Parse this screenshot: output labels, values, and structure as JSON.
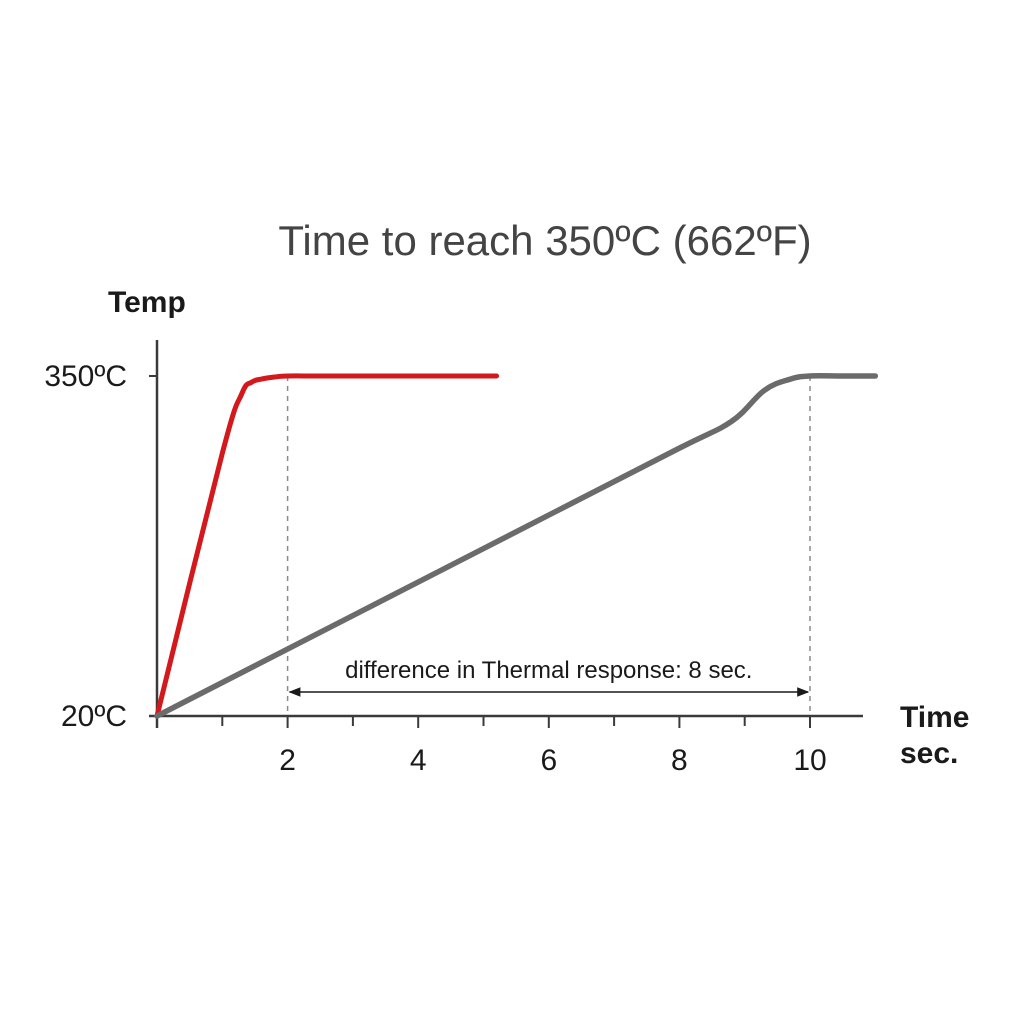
{
  "chart_data": {
    "type": "line",
    "title": "Time to reach 350ºC (662ºF)",
    "ylabel": "Temp",
    "xlabel_line1": "Time",
    "xlabel_line2": "sec.",
    "xlim": [
      0,
      11
    ],
    "ylim": [
      20,
      350
    ],
    "x_ticks": [
      2,
      4,
      6,
      8,
      10
    ],
    "x_tick_labels": [
      "2",
      "4",
      "6",
      "8",
      "10"
    ],
    "y_ticks": [
      20,
      350
    ],
    "y_tick_labels": [
      "20ºC",
      "350ºC"
    ],
    "grid": false,
    "series": [
      {
        "color": "#d3191c",
        "x": [
          0,
          1.0,
          1.3,
          1.45,
          1.6,
          1.8,
          2.0,
          2.5,
          3.5,
          5.2
        ],
        "y": [
          20,
          275,
          333,
          344,
          347,
          349,
          350,
          350,
          350,
          350
        ]
      },
      {
        "color": "#6b6b6b",
        "x": [
          0,
          2,
          4,
          6,
          8,
          8.8,
          9.3,
          9.7,
          10,
          10.5,
          11
        ],
        "y": [
          20,
          85,
          150,
          215,
          280,
          306,
          336,
          347,
          350,
          350,
          350
        ]
      }
    ],
    "annotations": {
      "difference_text": "difference in Thermal response: 8 sec.",
      "difference_from": 2,
      "difference_to": 10,
      "difference_y": 46
    },
    "reference_lines_x": [
      2,
      10
    ]
  },
  "colors": {
    "axis": "#3a3a3a",
    "dashed": "#8a8a8a",
    "red_series": "#d3191c",
    "gray_series": "#6b6b6b"
  }
}
